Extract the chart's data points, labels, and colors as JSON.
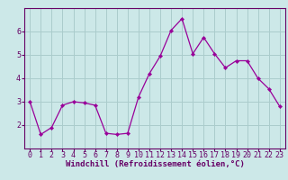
{
  "x": [
    0,
    1,
    2,
    3,
    4,
    5,
    6,
    7,
    8,
    9,
    10,
    11,
    12,
    13,
    14,
    15,
    16,
    17,
    18,
    19,
    20,
    21,
    22,
    23
  ],
  "y": [
    3.0,
    1.6,
    1.9,
    2.85,
    3.0,
    2.95,
    2.85,
    1.65,
    1.6,
    1.65,
    3.2,
    4.2,
    4.95,
    6.05,
    6.55,
    5.05,
    5.75,
    5.05,
    4.45,
    4.75,
    4.75,
    4.0,
    3.55,
    2.8
  ],
  "line_color": "#990099",
  "marker_color": "#990099",
  "bg_color": "#cce8e8",
  "grid_color": "#aacccc",
  "axis_color": "#660066",
  "xlabel": "Windchill (Refroidissement éolien,°C)",
  "xlim": [
    -0.5,
    23.5
  ],
  "ylim": [
    1.0,
    7.0
  ],
  "yticks": [
    2,
    3,
    4,
    5,
    6
  ],
  "xticks": [
    0,
    1,
    2,
    3,
    4,
    5,
    6,
    7,
    8,
    9,
    10,
    11,
    12,
    13,
    14,
    15,
    16,
    17,
    18,
    19,
    20,
    21,
    22,
    23
  ],
  "label_fontsize": 6.5,
  "tick_fontsize": 6.0
}
